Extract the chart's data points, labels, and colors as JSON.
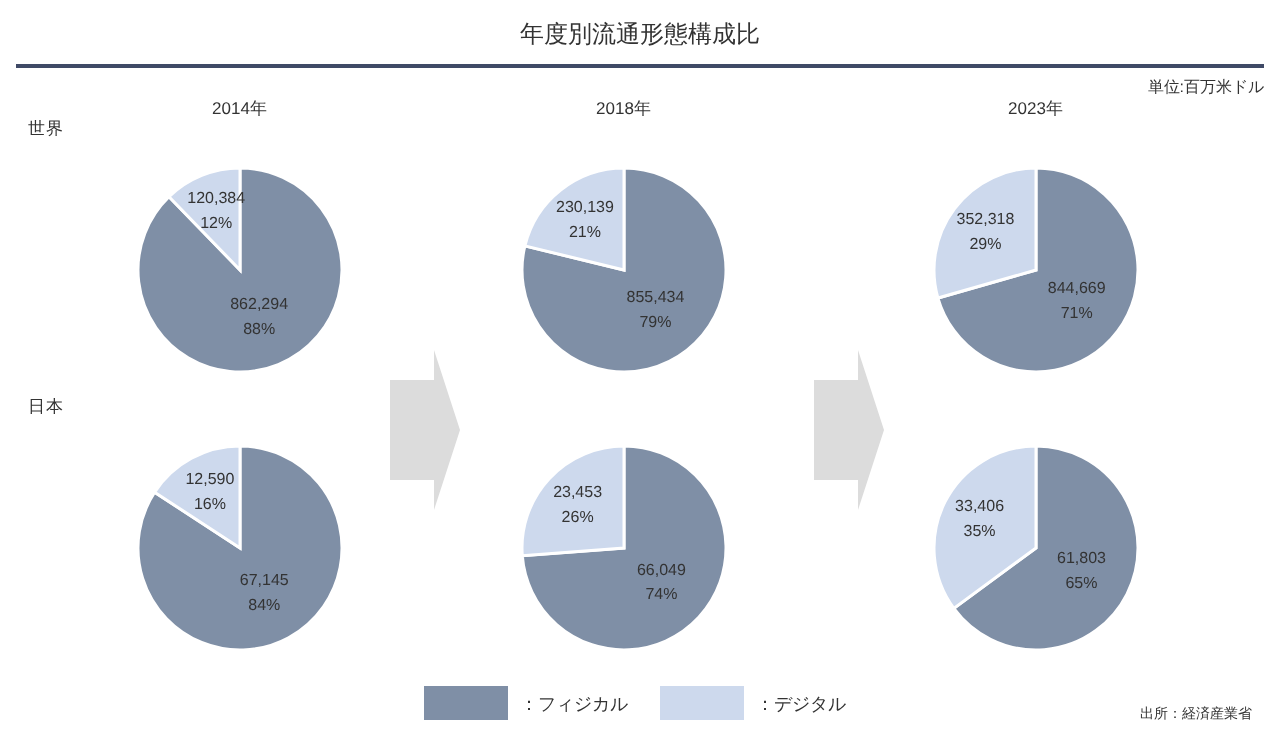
{
  "chart_data": [
    {
      "type": "other",
      "title": "年度別流通形態構成比",
      "annotations": [
        "単位:百万米ドル",
        "出所：経済産業省"
      ]
    },
    {
      "type": "pie",
      "title": "2014年",
      "ylabel": "世界",
      "categories": [
        "：フィジカル",
        "：デジタル"
      ],
      "values": [
        862294,
        120384
      ],
      "colors": [
        "#7f8fa6",
        "#cdd9ed"
      ],
      "value_labels": [
        "862,294\n88%",
        "120,384\n12%"
      ],
      "legend": "bottom"
    },
    {
      "type": "pie",
      "title": "2018年",
      "values": [
        855434,
        230139
      ],
      "colors": [
        "#7f8fa6",
        "#cdd9ed"
      ],
      "value_labels": [
        "855,434\n79%",
        "230,139\n21%"
      ]
    },
    {
      "type": "pie",
      "title": "2023年",
      "values": [
        844669,
        352318
      ],
      "colors": [
        "#7f8fa6",
        "#cdd9ed"
      ],
      "value_labels": [
        "844,669\n71%",
        "352,318\n29%"
      ]
    },
    {
      "type": "pie",
      "ylabel": "日本",
      "values": [
        67145,
        12590
      ],
      "colors": [
        "#7f8fa6",
        "#cdd9ed"
      ],
      "value_labels": [
        "67,145\n84%",
        "12,590\n16%"
      ]
    },
    {
      "type": "pie",
      "values": [
        66049,
        23453
      ],
      "colors": [
        "#7f8fa6",
        "#cdd9ed"
      ],
      "value_labels": [
        "66,049\n74%",
        "23,453\n26%"
      ]
    },
    {
      "type": "pie",
      "values": [
        61803,
        33406
      ],
      "colors": [
        "#7f8fa6",
        "#cdd9ed"
      ],
      "value_labels": [
        "61,803\n65%",
        "33,406\n35%"
      ]
    }
  ]
}
